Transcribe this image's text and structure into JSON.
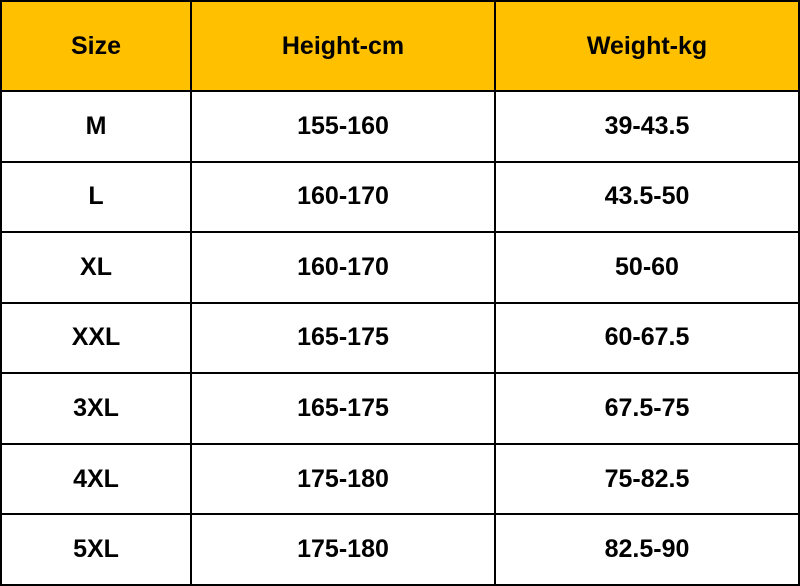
{
  "header_color": "#FFC000",
  "columns": [
    "Size",
    "Height-cm",
    "Weight-kg"
  ],
  "rows": [
    [
      "M",
      "155-160",
      "39-43.5"
    ],
    [
      "L",
      "160-170",
      "43.5-50"
    ],
    [
      "XL",
      "160-170",
      "50-60"
    ],
    [
      "XXL",
      "165-175",
      "60-67.5"
    ],
    [
      "3XL",
      "165-175",
      "67.5-75"
    ],
    [
      "4XL",
      "175-180",
      "75-82.5"
    ],
    [
      "5XL",
      "175-180",
      "82.5-90"
    ]
  ]
}
